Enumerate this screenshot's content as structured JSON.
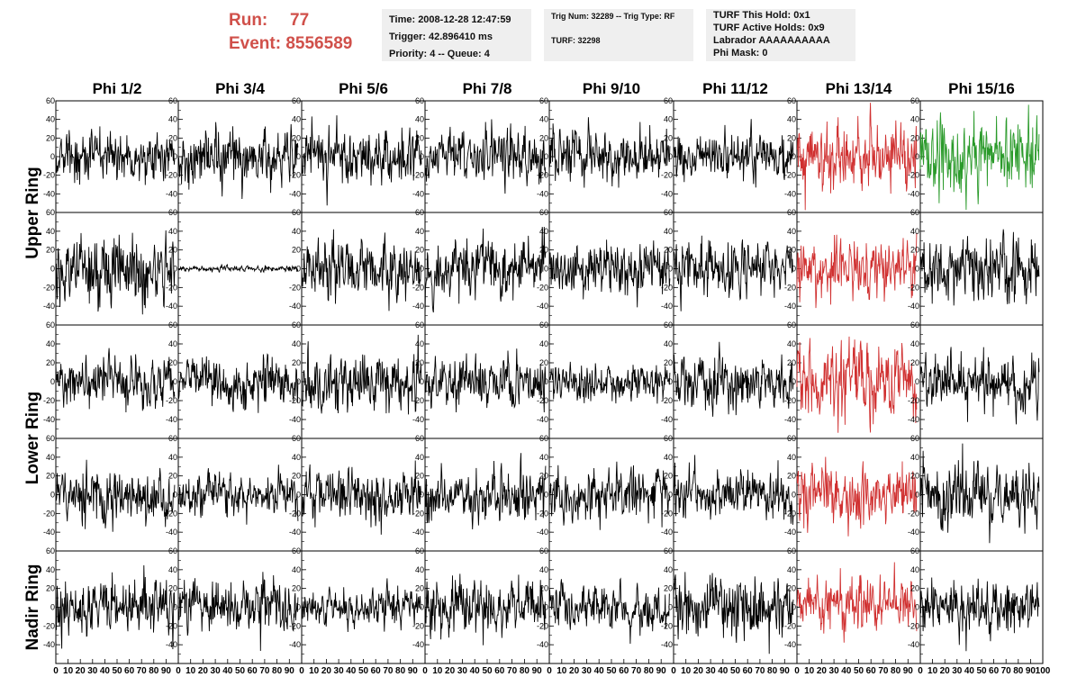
{
  "header": {
    "run_label": "Run:",
    "run_value": "77",
    "event_label": "Event:",
    "event_value": "8556589",
    "time_line": "Time: 2008-12-28 12:47:59",
    "trigger_line": "Trigger: 42.896410 ms",
    "priority_line": "Priority: 4 -- Queue: 4",
    "trig_line": "Trig Num: 32289 -- Trig Type: RF",
    "turf_line": "TURF: 32298",
    "turf_hold_line": "TURF This Hold: 0x1",
    "turf_active_line": "TURF Active Holds: 0x9",
    "labrador_line": "Labrador AAAAAAAAAA",
    "phi_mask_line": "Phi Mask: 0"
  },
  "chart_data": {
    "type": "line",
    "columns": [
      "Phi 1/2",
      "Phi 3/4",
      "Phi 5/6",
      "Phi 7/8",
      "Phi 9/10",
      "Phi 11/12",
      "Phi 13/14",
      "Phi 15/16"
    ],
    "row_groups": [
      {
        "label": "Upper Ring",
        "rows": [
          0,
          1
        ]
      },
      {
        "label": "Lower Ring",
        "rows": [
          2,
          3
        ]
      },
      {
        "label": "Nadir Ring",
        "rows": [
          4
        ]
      }
    ],
    "ylim": [
      -60,
      60
    ],
    "yticks": [
      -40,
      -20,
      0,
      20,
      40,
      60
    ],
    "xlim": [
      0,
      100
    ],
    "xticks": [
      0,
      10,
      20,
      30,
      40,
      50,
      60,
      70,
      80,
      90,
      100
    ],
    "colors": {
      "normal": "#000000",
      "triggered": "#d03030",
      "hold": "#2a9a2a"
    },
    "panels": [
      {
        "row": 0,
        "col": 0,
        "amp": 14,
        "color": "normal"
      },
      {
        "row": 0,
        "col": 1,
        "amp": 15,
        "color": "normal"
      },
      {
        "row": 0,
        "col": 2,
        "amp": 15,
        "color": "normal"
      },
      {
        "row": 0,
        "col": 3,
        "amp": 14,
        "color": "normal"
      },
      {
        "row": 0,
        "col": 4,
        "amp": 14,
        "color": "normal"
      },
      {
        "row": 0,
        "col": 5,
        "amp": 13,
        "color": "normal"
      },
      {
        "row": 0,
        "col": 6,
        "amp": 19,
        "color": "triggered"
      },
      {
        "row": 0,
        "col": 7,
        "amp": 20,
        "color": "hold"
      },
      {
        "row": 1,
        "col": 0,
        "amp": 19,
        "color": "normal"
      },
      {
        "row": 1,
        "col": 1,
        "amp": 1.5,
        "color": "normal"
      },
      {
        "row": 1,
        "col": 2,
        "amp": 16,
        "color": "normal"
      },
      {
        "row": 1,
        "col": 3,
        "amp": 16,
        "color": "normal"
      },
      {
        "row": 1,
        "col": 4,
        "amp": 14,
        "color": "normal"
      },
      {
        "row": 1,
        "col": 5,
        "amp": 14,
        "color": "normal"
      },
      {
        "row": 1,
        "col": 6,
        "amp": 15,
        "color": "triggered"
      },
      {
        "row": 1,
        "col": 7,
        "amp": 17,
        "color": "normal"
      },
      {
        "row": 2,
        "col": 0,
        "amp": 13,
        "color": "normal"
      },
      {
        "row": 2,
        "col": 1,
        "amp": 13,
        "color": "normal"
      },
      {
        "row": 2,
        "col": 2,
        "amp": 16,
        "color": "normal"
      },
      {
        "row": 2,
        "col": 3,
        "amp": 13,
        "color": "normal"
      },
      {
        "row": 2,
        "col": 4,
        "amp": 10,
        "color": "normal"
      },
      {
        "row": 2,
        "col": 5,
        "amp": 14,
        "color": "normal"
      },
      {
        "row": 2,
        "col": 6,
        "amp": 21,
        "color": "triggered"
      },
      {
        "row": 2,
        "col": 7,
        "amp": 15,
        "color": "normal"
      },
      {
        "row": 3,
        "col": 0,
        "amp": 15,
        "color": "normal"
      },
      {
        "row": 3,
        "col": 1,
        "amp": 12,
        "color": "normal"
      },
      {
        "row": 3,
        "col": 2,
        "amp": 14,
        "color": "normal"
      },
      {
        "row": 3,
        "col": 3,
        "amp": 15,
        "color": "normal"
      },
      {
        "row": 3,
        "col": 4,
        "amp": 14,
        "color": "normal"
      },
      {
        "row": 3,
        "col": 5,
        "amp": 13,
        "color": "normal"
      },
      {
        "row": 3,
        "col": 6,
        "amp": 15,
        "color": "triggered"
      },
      {
        "row": 3,
        "col": 7,
        "amp": 17,
        "color": "normal"
      },
      {
        "row": 4,
        "col": 0,
        "amp": 16,
        "color": "normal"
      },
      {
        "row": 4,
        "col": 1,
        "amp": 14,
        "color": "normal"
      },
      {
        "row": 4,
        "col": 2,
        "amp": 10,
        "color": "normal"
      },
      {
        "row": 4,
        "col": 3,
        "amp": 14,
        "color": "normal"
      },
      {
        "row": 4,
        "col": 4,
        "amp": 12,
        "color": "normal"
      },
      {
        "row": 4,
        "col": 5,
        "amp": 17,
        "color": "normal"
      },
      {
        "row": 4,
        "col": 6,
        "amp": 14,
        "color": "triggered"
      },
      {
        "row": 4,
        "col": 7,
        "amp": 15,
        "color": "normal"
      }
    ]
  }
}
